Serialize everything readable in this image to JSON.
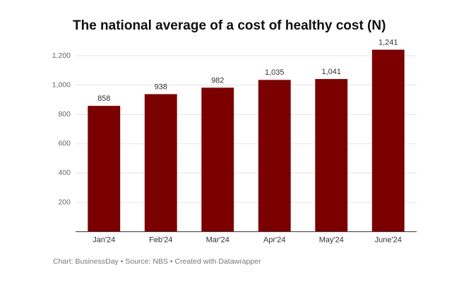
{
  "chart_data": {
    "type": "bar",
    "title": "The national average of a cost of healthy cost (N)",
    "categories": [
      "Jan'24",
      "Feb'24",
      "Mar'24",
      "Apr'24",
      "May'24",
      "June'24"
    ],
    "values": [
      858,
      938,
      982,
      1035,
      1041,
      1241
    ],
    "value_labels": [
      "858",
      "938",
      "982",
      "1,035",
      "1,041",
      "1,241"
    ],
    "color": "#7b0000",
    "ylim": [
      0,
      1241
    ],
    "yticks": [
      200,
      400,
      600,
      800,
      {
        "value": 1000,
        "label": "1,000"
      },
      {
        "value": 1200,
        "label": "1,200"
      }
    ],
    "grid": true,
    "source": "Chart: BusinessDay • Source: NBS • Created with Datawrapper"
  }
}
